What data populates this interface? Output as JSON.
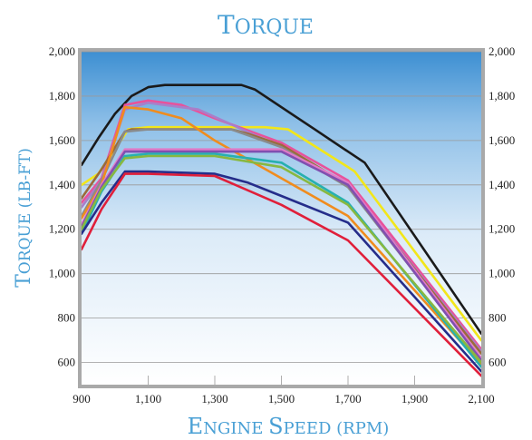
{
  "chart_data": {
    "type": "line",
    "title": "Torque",
    "xlabel": "Engine Speed (rpm)",
    "ylabel": "Torque (lb-ft)",
    "xlim": [
      900,
      2100
    ],
    "ylim": [
      500,
      2000
    ],
    "x_ticks": [
      "900",
      "1,100",
      "1,300",
      "1,500",
      "1,700",
      "1,900",
      "2,100"
    ],
    "y_ticks": [
      "600",
      "800",
      "1,000",
      "1,200",
      "1,400",
      "1,600",
      "1,800",
      "2,000"
    ],
    "grid": "horizontal",
    "legend": "none",
    "series": [
      {
        "color": "#1a1a1a",
        "points": [
          [
            900,
            1490
          ],
          [
            950,
            1610
          ],
          [
            1000,
            1720
          ],
          [
            1050,
            1800
          ],
          [
            1100,
            1840
          ],
          [
            1150,
            1850
          ],
          [
            1380,
            1850
          ],
          [
            1420,
            1830
          ],
          [
            1600,
            1650
          ],
          [
            1700,
            1550
          ],
          [
            1750,
            1500
          ],
          [
            2100,
            730
          ]
        ]
      },
      {
        "color": "#f2e61a",
        "points": [
          [
            900,
            1400
          ],
          [
            950,
            1450
          ],
          [
            1000,
            1560
          ],
          [
            1040,
            1650
          ],
          [
            1100,
            1660
          ],
          [
            1450,
            1660
          ],
          [
            1520,
            1650
          ],
          [
            1700,
            1480
          ],
          [
            1720,
            1460
          ],
          [
            2100,
            700
          ]
        ]
      },
      {
        "color": "#e8529b",
        "points": [
          [
            900,
            1320
          ],
          [
            960,
            1430
          ],
          [
            1030,
            1760
          ],
          [
            1100,
            1780
          ],
          [
            1200,
            1760
          ],
          [
            1300,
            1700
          ],
          [
            1500,
            1590
          ],
          [
            1700,
            1420
          ],
          [
            2100,
            660
          ]
        ]
      },
      {
        "color": "#a87fc9",
        "points": [
          [
            900,
            1300
          ],
          [
            960,
            1420
          ],
          [
            1030,
            1740
          ],
          [
            1100,
            1770
          ],
          [
            1250,
            1740
          ],
          [
            1500,
            1570
          ],
          [
            1700,
            1400
          ],
          [
            2100,
            650
          ]
        ]
      },
      {
        "color": "#9b6b3a",
        "points": [
          [
            900,
            1340
          ],
          [
            960,
            1470
          ],
          [
            1030,
            1640
          ],
          [
            1050,
            1650
          ],
          [
            1350,
            1650
          ],
          [
            1400,
            1630
          ],
          [
            1500,
            1580
          ],
          [
            1700,
            1400
          ],
          [
            2100,
            640
          ]
        ]
      },
      {
        "color": "#8a8a8a",
        "points": [
          [
            900,
            1260
          ],
          [
            960,
            1420
          ],
          [
            1030,
            1640
          ],
          [
            1100,
            1650
          ],
          [
            1350,
            1650
          ],
          [
            1500,
            1570
          ],
          [
            1700,
            1390
          ],
          [
            2100,
            620
          ]
        ]
      },
      {
        "color": "#f08c1e",
        "points": [
          [
            900,
            1250
          ],
          [
            960,
            1400
          ],
          [
            1030,
            1750
          ],
          [
            1100,
            1740
          ],
          [
            1200,
            1700
          ],
          [
            1300,
            1600
          ],
          [
            1500,
            1430
          ],
          [
            1700,
            1260
          ],
          [
            2100,
            590
          ]
        ]
      },
      {
        "color": "#e07bc8",
        "points": [
          [
            900,
            1220
          ],
          [
            960,
            1400
          ],
          [
            1030,
            1560
          ],
          [
            1100,
            1560
          ],
          [
            1500,
            1560
          ],
          [
            1700,
            1410
          ],
          [
            2100,
            620
          ]
        ]
      },
      {
        "color": "#8050b0",
        "points": [
          [
            900,
            1210
          ],
          [
            960,
            1390
          ],
          [
            1030,
            1550
          ],
          [
            1100,
            1550
          ],
          [
            1500,
            1550
          ],
          [
            1700,
            1400
          ],
          [
            2100,
            610
          ]
        ]
      },
      {
        "color": "#27b0b0",
        "points": [
          [
            900,
            1180
          ],
          [
            960,
            1370
          ],
          [
            1030,
            1530
          ],
          [
            1100,
            1540
          ],
          [
            1300,
            1540
          ],
          [
            1400,
            1520
          ],
          [
            1500,
            1500
          ],
          [
            1700,
            1320
          ],
          [
            2100,
            580
          ]
        ]
      },
      {
        "color": "#88b840",
        "points": [
          [
            900,
            1200
          ],
          [
            960,
            1380
          ],
          [
            1030,
            1520
          ],
          [
            1100,
            1530
          ],
          [
            1300,
            1530
          ],
          [
            1500,
            1480
          ],
          [
            1700,
            1310
          ],
          [
            2100,
            600
          ]
        ]
      },
      {
        "color": "#252d8a",
        "points": [
          [
            900,
            1180
          ],
          [
            960,
            1320
          ],
          [
            1030,
            1460
          ],
          [
            1100,
            1460
          ],
          [
            1300,
            1450
          ],
          [
            1400,
            1410
          ],
          [
            1500,
            1350
          ],
          [
            1700,
            1230
          ],
          [
            2100,
            560
          ]
        ]
      },
      {
        "color": "#e01f3a",
        "points": [
          [
            900,
            1110
          ],
          [
            960,
            1290
          ],
          [
            1030,
            1450
          ],
          [
            1100,
            1450
          ],
          [
            1300,
            1440
          ],
          [
            1500,
            1310
          ],
          [
            1700,
            1150
          ],
          [
            2100,
            540
          ]
        ]
      }
    ]
  }
}
